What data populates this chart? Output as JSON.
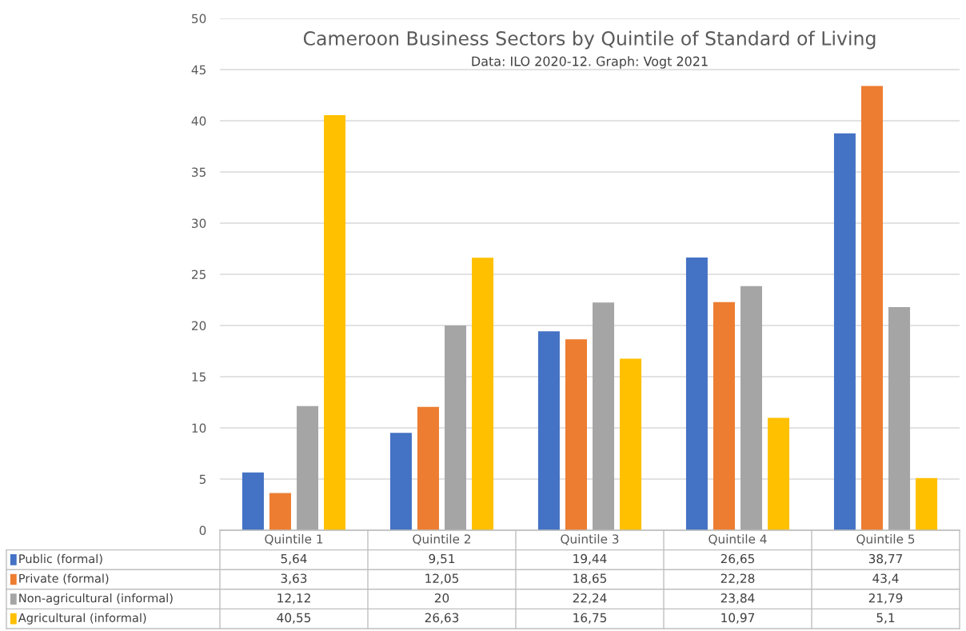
{
  "chart_data": {
    "type": "bar",
    "title": "Cameroon Business Sectors by Quintile of Standard of Living",
    "subtitle": "Data: ILO 2020-12. Graph: Vogt 2021",
    "categories": [
      "Quintile 1",
      "Quintile 2",
      "Quintile 3",
      "Quintile 4",
      "Quintile 5"
    ],
    "series": [
      {
        "name": "Public (formal)",
        "color": "#4472c4",
        "values": [
          5.64,
          9.51,
          19.44,
          26.65,
          38.77
        ],
        "value_labels": [
          "5,64",
          "9,51",
          "19,44",
          "26,65",
          "38,77"
        ]
      },
      {
        "name": "Private (formal)",
        "color": "#ed7d31",
        "values": [
          3.63,
          12.05,
          18.65,
          22.28,
          43.4
        ],
        "value_labels": [
          "3,63",
          "12,05",
          "18,65",
          "22,28",
          "43,4"
        ]
      },
      {
        "name": "Non-agricultural (informal)",
        "color": "#a5a5a5",
        "values": [
          12.12,
          20,
          22.24,
          23.84,
          21.79
        ],
        "value_labels": [
          "12,12",
          "20",
          "22,24",
          "23,84",
          "21,79"
        ]
      },
      {
        "name": "Agricultural (informal)",
        "color": "#ffc000",
        "values": [
          40.55,
          26.63,
          16.75,
          10.97,
          5.1
        ],
        "value_labels": [
          "40,55",
          "26,63",
          "16,75",
          "10,97",
          "5,1"
        ]
      }
    ],
    "ylim": [
      0,
      50
    ],
    "yticks": [
      0,
      5,
      10,
      15,
      20,
      25,
      30,
      35,
      40,
      45,
      50
    ],
    "grid": "y",
    "legend": "bottom"
  }
}
